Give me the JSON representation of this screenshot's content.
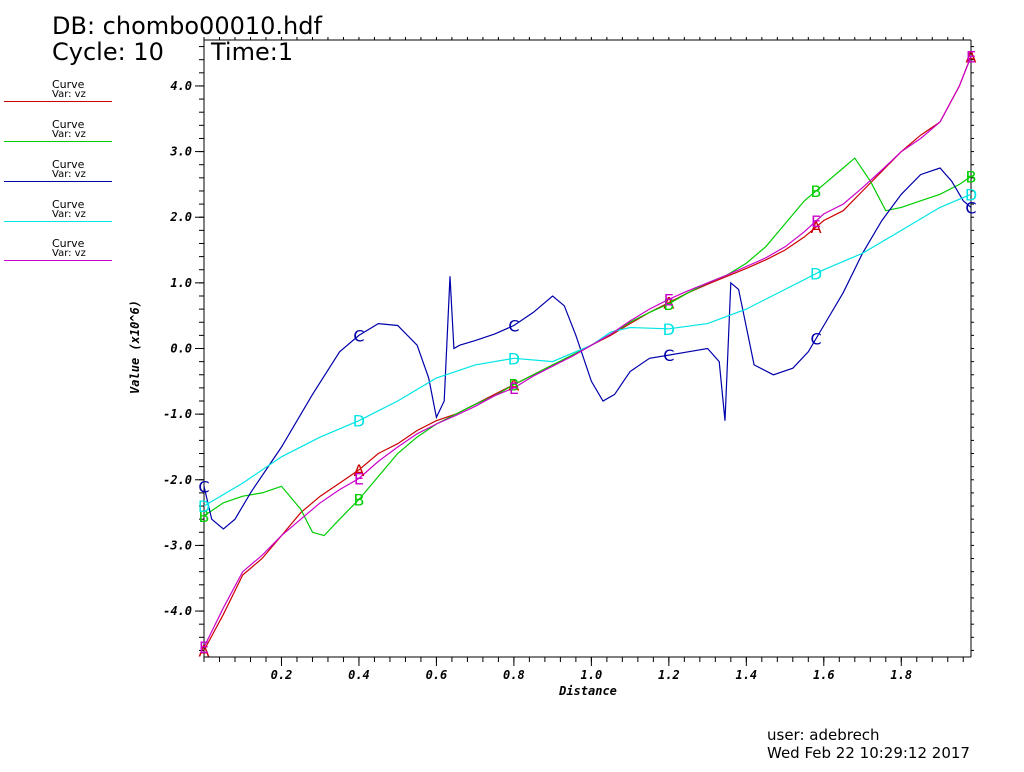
{
  "header": {
    "db_label": "DB: chombo00010.hdf",
    "cycle_label": "Cycle: 10",
    "time_label": "Time:1"
  },
  "legend": [
    {
      "title": "Curve",
      "var": "Var: vz",
      "color": "#cc0000"
    },
    {
      "title": "Curve",
      "var": "Var: vz",
      "color": "#00cc00"
    },
    {
      "title": "Curve",
      "var": "Var: vz",
      "color": "#0000aa"
    },
    {
      "title": "Curve",
      "var": "Var: vz",
      "color": "#00e5e5"
    },
    {
      "title": "Curve",
      "var": "Var: vz",
      "color": "#cc00cc"
    }
  ],
  "footer": {
    "user": "user: adebrech",
    "date": "Wed Feb 22 10:29:12 2017"
  },
  "chart_data": {
    "type": "line",
    "title": "",
    "xlabel": "Distance",
    "ylabel": "Value (x10^6)",
    "xlim": [
      0.0,
      1.98
    ],
    "ylim": [
      -4.7,
      4.7
    ],
    "xticks": [
      0.2,
      0.4,
      0.6,
      0.8,
      1.0,
      1.2,
      1.4,
      1.6,
      1.8
    ],
    "xtick_labels": [
      "0.2",
      "0.4",
      "0.6",
      "0.8",
      "1.0",
      "1.2",
      "1.4",
      "1.6",
      "1.8"
    ],
    "yticks": [
      -4,
      -3,
      -2,
      -1,
      0,
      1,
      2,
      3,
      4
    ],
    "ytick_labels": [
      "-4.0",
      "-3.0",
      "-2.0",
      "-1.0",
      "0.0",
      "1.0",
      "2.0",
      "3.0",
      "4.0"
    ],
    "grid": false,
    "series": [
      {
        "marker": "A",
        "color": "#cc0000",
        "x": [
          0.0,
          0.05,
          0.1,
          0.15,
          0.2,
          0.25,
          0.3,
          0.35,
          0.4,
          0.45,
          0.5,
          0.55,
          0.6,
          0.65,
          0.7,
          0.75,
          0.8,
          0.85,
          0.9,
          0.95,
          1.0,
          1.05,
          1.1,
          1.15,
          1.2,
          1.25,
          1.3,
          1.35,
          1.4,
          1.45,
          1.5,
          1.55,
          1.6,
          1.65,
          1.7,
          1.75,
          1.8,
          1.85,
          1.9,
          1.95,
          1.98
        ],
        "y": [
          -4.6,
          -4.05,
          -3.45,
          -3.2,
          -2.85,
          -2.5,
          -2.25,
          -2.05,
          -1.85,
          -1.6,
          -1.45,
          -1.25,
          -1.1,
          -1.0,
          -0.85,
          -0.7,
          -0.55,
          -0.4,
          -0.25,
          -0.12,
          0.05,
          0.2,
          0.38,
          0.55,
          0.7,
          0.85,
          0.98,
          1.1,
          1.22,
          1.35,
          1.5,
          1.7,
          1.95,
          2.1,
          2.4,
          2.7,
          3.0,
          3.25,
          3.45,
          4.0,
          4.45
        ],
        "labels_at": [
          0.0,
          0.4,
          0.8,
          1.2,
          1.58,
          1.98
        ]
      },
      {
        "marker": "B",
        "color": "#00cc00",
        "x": [
          0.0,
          0.05,
          0.1,
          0.15,
          0.2,
          0.25,
          0.28,
          0.31,
          0.35,
          0.4,
          0.45,
          0.5,
          0.55,
          0.6,
          0.65,
          0.7,
          0.75,
          0.8,
          0.85,
          0.9,
          0.95,
          1.0,
          1.05,
          1.1,
          1.15,
          1.2,
          1.25,
          1.3,
          1.35,
          1.4,
          1.45,
          1.5,
          1.55,
          1.6,
          1.65,
          1.68,
          1.72,
          1.76,
          1.8,
          1.85,
          1.9,
          1.95,
          1.98
        ],
        "y": [
          -2.55,
          -2.35,
          -2.25,
          -2.2,
          -2.1,
          -2.45,
          -2.8,
          -2.85,
          -2.6,
          -2.3,
          -1.95,
          -1.6,
          -1.35,
          -1.15,
          -1.0,
          -0.85,
          -0.72,
          -0.55,
          -0.4,
          -0.25,
          -0.1,
          0.05,
          0.22,
          0.4,
          0.55,
          0.68,
          0.85,
          1.0,
          1.12,
          1.3,
          1.55,
          1.9,
          2.25,
          2.5,
          2.75,
          2.9,
          2.55,
          2.1,
          2.15,
          2.25,
          2.35,
          2.5,
          2.62
        ],
        "labels_at": [
          0.0,
          0.4,
          0.8,
          1.2,
          1.58,
          1.98
        ]
      },
      {
        "marker": "C",
        "color": "#0000aa",
        "x": [
          0.0,
          0.02,
          0.05,
          0.08,
          0.12,
          0.2,
          0.28,
          0.35,
          0.4,
          0.45,
          0.5,
          0.55,
          0.58,
          0.6,
          0.62,
          0.635,
          0.645,
          0.66,
          0.7,
          0.75,
          0.8,
          0.85,
          0.9,
          0.93,
          0.96,
          1.0,
          1.03,
          1.06,
          1.1,
          1.15,
          1.2,
          1.25,
          1.3,
          1.33,
          1.345,
          1.36,
          1.38,
          1.42,
          1.47,
          1.52,
          1.56,
          1.6,
          1.65,
          1.7,
          1.75,
          1.8,
          1.85,
          1.9,
          1.93,
          1.96,
          1.98
        ],
        "y": [
          -2.1,
          -2.6,
          -2.75,
          -2.6,
          -2.2,
          -1.5,
          -0.7,
          -0.05,
          0.2,
          0.38,
          0.35,
          0.05,
          -0.45,
          -1.05,
          -0.8,
          1.1,
          0.0,
          0.05,
          0.12,
          0.22,
          0.35,
          0.55,
          0.8,
          0.65,
          0.2,
          -0.5,
          -0.8,
          -0.7,
          -0.35,
          -0.15,
          -0.1,
          -0.05,
          0.0,
          -0.2,
          -1.1,
          1.0,
          0.9,
          -0.25,
          -0.4,
          -0.3,
          -0.05,
          0.35,
          0.85,
          1.45,
          1.95,
          2.35,
          2.65,
          2.75,
          2.55,
          2.25,
          2.15
        ],
        "labels_at": [
          0.0,
          0.4,
          0.8,
          1.2,
          1.58,
          1.98
        ]
      },
      {
        "marker": "D",
        "color": "#00e5e5",
        "x": [
          0.0,
          0.1,
          0.2,
          0.3,
          0.4,
          0.5,
          0.6,
          0.7,
          0.8,
          0.9,
          1.0,
          1.05,
          1.1,
          1.2,
          1.3,
          1.4,
          1.5,
          1.6,
          1.7,
          1.8,
          1.9,
          1.98
        ],
        "y": [
          -2.4,
          -2.05,
          -1.65,
          -1.35,
          -1.1,
          -0.8,
          -0.45,
          -0.25,
          -0.15,
          -0.2,
          0.05,
          0.25,
          0.32,
          0.3,
          0.38,
          0.6,
          0.9,
          1.2,
          1.45,
          1.8,
          2.15,
          2.35
        ],
        "labels_at": [
          0.0,
          0.4,
          0.8,
          1.2,
          1.58,
          1.98
        ]
      },
      {
        "marker": "E",
        "color": "#cc00cc",
        "x": [
          0.0,
          0.05,
          0.1,
          0.15,
          0.2,
          0.25,
          0.3,
          0.35,
          0.4,
          0.45,
          0.5,
          0.55,
          0.6,
          0.65,
          0.7,
          0.75,
          0.8,
          0.85,
          0.9,
          0.95,
          1.0,
          1.05,
          1.1,
          1.15,
          1.2,
          1.25,
          1.3,
          1.35,
          1.4,
          1.45,
          1.5,
          1.55,
          1.6,
          1.65,
          1.7,
          1.75,
          1.8,
          1.85,
          1.9,
          1.95,
          1.98
        ],
        "y": [
          -4.55,
          -3.95,
          -3.4,
          -3.15,
          -2.85,
          -2.6,
          -2.35,
          -2.15,
          -1.98,
          -1.72,
          -1.5,
          -1.3,
          -1.15,
          -1.02,
          -0.88,
          -0.72,
          -0.6,
          -0.42,
          -0.27,
          -0.12,
          0.05,
          0.22,
          0.42,
          0.6,
          0.75,
          0.88,
          1.0,
          1.12,
          1.25,
          1.38,
          1.55,
          1.78,
          2.05,
          2.2,
          2.45,
          2.72,
          3.0,
          3.2,
          3.45,
          4.0,
          4.45
        ],
        "labels_at": [
          0.0,
          0.4,
          0.8,
          1.2,
          1.58,
          1.98
        ]
      }
    ]
  }
}
